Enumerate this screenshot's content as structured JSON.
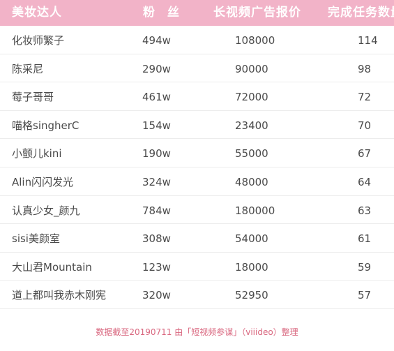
{
  "table": {
    "headers": {
      "name": "美妆达人",
      "fans": "粉 丝",
      "price": "长视频广告报价",
      "tasks": "完成任务数量"
    },
    "rows": [
      {
        "name": "化妆师繁子",
        "fans": "494w",
        "price": "108000",
        "tasks": "114"
      },
      {
        "name": "陈采尼",
        "fans": "290w",
        "price": "90000",
        "tasks": "98"
      },
      {
        "name": "莓子哥哥",
        "fans": "461w",
        "price": "72000",
        "tasks": "72"
      },
      {
        "name": "喵格singherC",
        "fans": "154w",
        "price": "23400",
        "tasks": "70"
      },
      {
        "name": "小颤儿kini",
        "fans": "190w",
        "price": "55000",
        "tasks": "67"
      },
      {
        "name": "Alin闪闪发光",
        "fans": "324w",
        "price": "48000",
        "tasks": "64"
      },
      {
        "name": "认真少女_颜九",
        "fans": "784w",
        "price": "180000",
        "tasks": "63"
      },
      {
        "name": "sisi美颜室",
        "fans": "308w",
        "price": "54000",
        "tasks": "61"
      },
      {
        "name": "大山君Mountain",
        "fans": "123w",
        "price": "18000",
        "tasks": "59"
      },
      {
        "name": "道上都叫我赤木刚宪",
        "fans": "320w",
        "price": "52950",
        "tasks": "57"
      }
    ]
  },
  "footnote": "数据截至20190711 由「短视频参谋」（viiideo）整理",
  "colors": {
    "header_bg": "#f2b3c8",
    "header_text": "#ffffff",
    "body_text": "#4a4a4a",
    "footnote_text": "#d9677f"
  }
}
